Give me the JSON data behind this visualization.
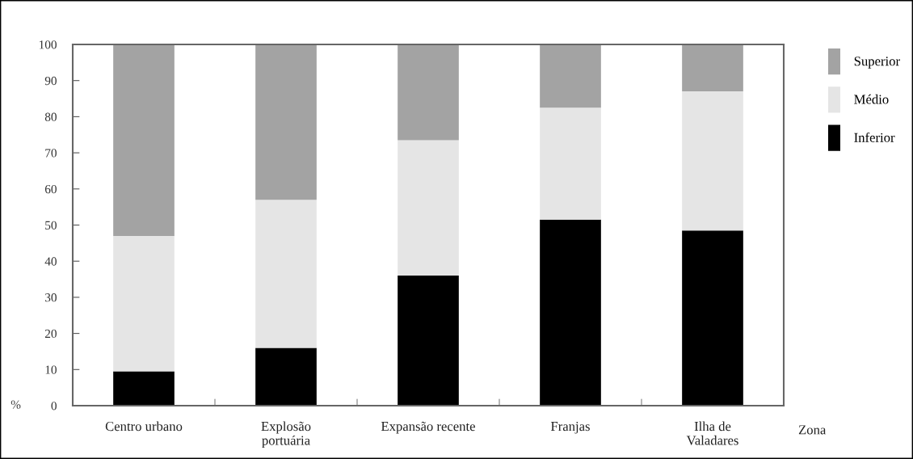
{
  "chart_data": {
    "type": "bar",
    "stacked": true,
    "xlabel": "Zona",
    "ylabel": "%",
    "categories": [
      "Centro urbano",
      "Explosão\nportuária",
      "Expansão recente",
      "Franjas",
      "Ilha de\nValadares"
    ],
    "series": [
      {
        "name": "Inferior",
        "color": "#000000",
        "values": [
          9.5,
          16,
          36,
          51.5,
          48.5
        ]
      },
      {
        "name": "Médio",
        "color": "#e5e5e5",
        "values": [
          37.5,
          41,
          37.5,
          31,
          38.5
        ]
      },
      {
        "name": "Superior",
        "color": "#a3a3a3",
        "values": [
          53,
          43,
          26.5,
          17.5,
          13
        ]
      }
    ],
    "ylim": [
      0,
      100
    ],
    "yticks": [
      0,
      10,
      20,
      30,
      40,
      50,
      60,
      70,
      80,
      90,
      100
    ],
    "grid": false,
    "legend": "right"
  }
}
